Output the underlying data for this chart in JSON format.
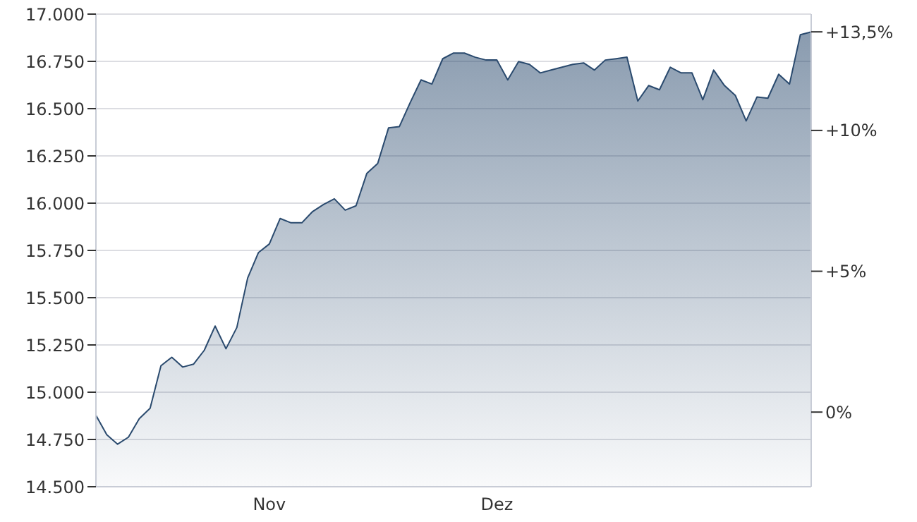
{
  "chart_data": {
    "type": "area",
    "categories": [
      null,
      null,
      null,
      null,
      null,
      null,
      null,
      null,
      null,
      null,
      null,
      null,
      null,
      null,
      null,
      null,
      "Nov",
      null,
      null,
      null,
      null,
      null,
      null,
      null,
      null,
      null,
      null,
      null,
      null,
      null,
      null,
      null,
      null,
      null,
      null,
      null,
      null,
      "Dez",
      null,
      null,
      null,
      null,
      null,
      null,
      null,
      null,
      null,
      null,
      null,
      null,
      null,
      null,
      null,
      null,
      null,
      null,
      null,
      null,
      null,
      null,
      null,
      null,
      null,
      null,
      null,
      null,
      null
    ],
    "series": [
      {
        "color": "#2a4a6e",
        "values": [
          14878,
          14775,
          14725,
          14762,
          14860,
          14915,
          15140,
          15185,
          15133,
          15148,
          15222,
          15350,
          15230,
          15342,
          15604,
          15739,
          15784,
          15919,
          15896,
          15896,
          15956,
          15993,
          16023,
          15963,
          15986,
          16158,
          16210,
          16398,
          16405,
          16532,
          16652,
          16630,
          16764,
          16794,
          16794,
          16772,
          16757,
          16757,
          16652,
          16749,
          16734,
          16689,
          16704,
          16719,
          16734,
          16742,
          16704,
          16757,
          16764,
          16772,
          16540,
          16622,
          16600,
          16719,
          16689,
          16689,
          16547,
          16704,
          16622,
          16570,
          16435,
          16562,
          16555,
          16682,
          16630,
          16891,
          16906
        ]
      }
    ],
    "ylim": [
      14500,
      17000
    ],
    "yticks": [
      {
        "value": 14500,
        "label": "14.500"
      },
      {
        "value": 14750,
        "label": "14.750"
      },
      {
        "value": 15000,
        "label": "15.000"
      },
      {
        "value": 15250,
        "label": "15.250"
      },
      {
        "value": 15500,
        "label": "15.500"
      },
      {
        "value": 15750,
        "label": "15.750"
      },
      {
        "value": 16000,
        "label": "16.000"
      },
      {
        "value": 16250,
        "label": "16.250"
      },
      {
        "value": 16500,
        "label": "16.500"
      },
      {
        "value": 16750,
        "label": "16.750"
      },
      {
        "value": 17000,
        "label": "17.000"
      }
    ],
    "y2lim": [
      -2.65,
      14.13
    ],
    "y2ticks": [
      {
        "value": 0,
        "label": "0%"
      },
      {
        "value": 5,
        "label": "+5%"
      },
      {
        "value": 10,
        "label": "+10%"
      },
      {
        "value": 13.5,
        "label": "+13,5%"
      }
    ],
    "grid": "y"
  }
}
